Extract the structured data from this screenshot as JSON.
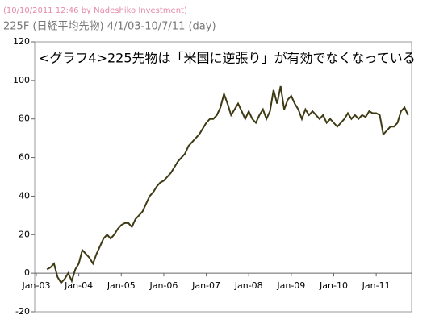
{
  "header": {
    "stamp": "(10/10/2011 12:46 by Nadeshiko Investment)",
    "subtitle": "225F (日経平均先物) 4/1/03-10/7/11 (day)"
  },
  "chart_data": {
    "type": "line",
    "title": "<グラフ4>225先物は「米国に逆張り」が有効でなくなっている",
    "color": "#3d3a14",
    "x": [
      "2003-04",
      "2003-05",
      "2003-06",
      "2003-07",
      "2003-08",
      "2003-09",
      "2003-10",
      "2003-11",
      "2003-12",
      "2004-01",
      "2004-02",
      "2004-03",
      "2004-04",
      "2004-05",
      "2004-06",
      "2004-07",
      "2004-08",
      "2004-09",
      "2004-10",
      "2004-11",
      "2004-12",
      "2005-01",
      "2005-02",
      "2005-03",
      "2005-04",
      "2005-05",
      "2005-06",
      "2005-07",
      "2005-08",
      "2005-09",
      "2005-10",
      "2005-11",
      "2005-12",
      "2006-01",
      "2006-02",
      "2006-03",
      "2006-04",
      "2006-05",
      "2006-06",
      "2006-07",
      "2006-08",
      "2006-09",
      "2006-10",
      "2006-11",
      "2006-12",
      "2007-01",
      "2007-02",
      "2007-03",
      "2007-04",
      "2007-05",
      "2007-06",
      "2007-07",
      "2007-08",
      "2007-09",
      "2007-10",
      "2007-11",
      "2007-12",
      "2008-01",
      "2008-02",
      "2008-03",
      "2008-04",
      "2008-05",
      "2008-06",
      "2008-07",
      "2008-08",
      "2008-09",
      "2008-10",
      "2008-11",
      "2008-12",
      "2009-01",
      "2009-02",
      "2009-03",
      "2009-04",
      "2009-05",
      "2009-06",
      "2009-07",
      "2009-08",
      "2009-09",
      "2009-10",
      "2009-11",
      "2009-12",
      "2010-01",
      "2010-02",
      "2010-03",
      "2010-04",
      "2010-05",
      "2010-06",
      "2010-07",
      "2010-08",
      "2010-09",
      "2010-10",
      "2010-11",
      "2010-12",
      "2011-01",
      "2011-02",
      "2011-03",
      "2011-04",
      "2011-05",
      "2011-06",
      "2011-07",
      "2011-08",
      "2011-09",
      "2011-10"
    ],
    "values": [
      2,
      3,
      5,
      -2,
      -5,
      -3,
      0,
      -4,
      2,
      5,
      12,
      10,
      8,
      5,
      10,
      14,
      18,
      20,
      18,
      20,
      23,
      25,
      26,
      26,
      24,
      28,
      30,
      32,
      36,
      40,
      42,
      45,
      47,
      48,
      50,
      52,
      55,
      58,
      60,
      62,
      66,
      68,
      70,
      72,
      75,
      78,
      80,
      80,
      82,
      86,
      93,
      88,
      82,
      85,
      88,
      84,
      80,
      84,
      80,
      78,
      82,
      85,
      80,
      84,
      95,
      88,
      97,
      85,
      90,
      92,
      88,
      85,
      80,
      85,
      82,
      84,
      82,
      80,
      82,
      78,
      80,
      78,
      76,
      78,
      80,
      83,
      80,
      82,
      80,
      82,
      81,
      84,
      83,
      83,
      82,
      72,
      74,
      76,
      76,
      78,
      84,
      86,
      82
    ],
    "xlim": [
      "2003-01",
      "2011-11"
    ],
    "xticks": [
      {
        "value": "2003-01",
        "label": "Jan-03"
      },
      {
        "value": "2004-01",
        "label": "Jan-04"
      },
      {
        "value": "2005-01",
        "label": "Jan-05"
      },
      {
        "value": "2006-01",
        "label": "Jan-06"
      },
      {
        "value": "2007-01",
        "label": "Jan-07"
      },
      {
        "value": "2008-01",
        "label": "Jan-08"
      },
      {
        "value": "2009-01",
        "label": "Jan-09"
      },
      {
        "value": "2010-01",
        "label": "Jan-10"
      },
      {
        "value": "2011-01",
        "label": "Jan-11"
      }
    ],
    "ylim": [
      -20,
      120
    ],
    "yticks": [
      -20,
      0,
      20,
      40,
      60,
      80,
      100,
      120
    ]
  }
}
